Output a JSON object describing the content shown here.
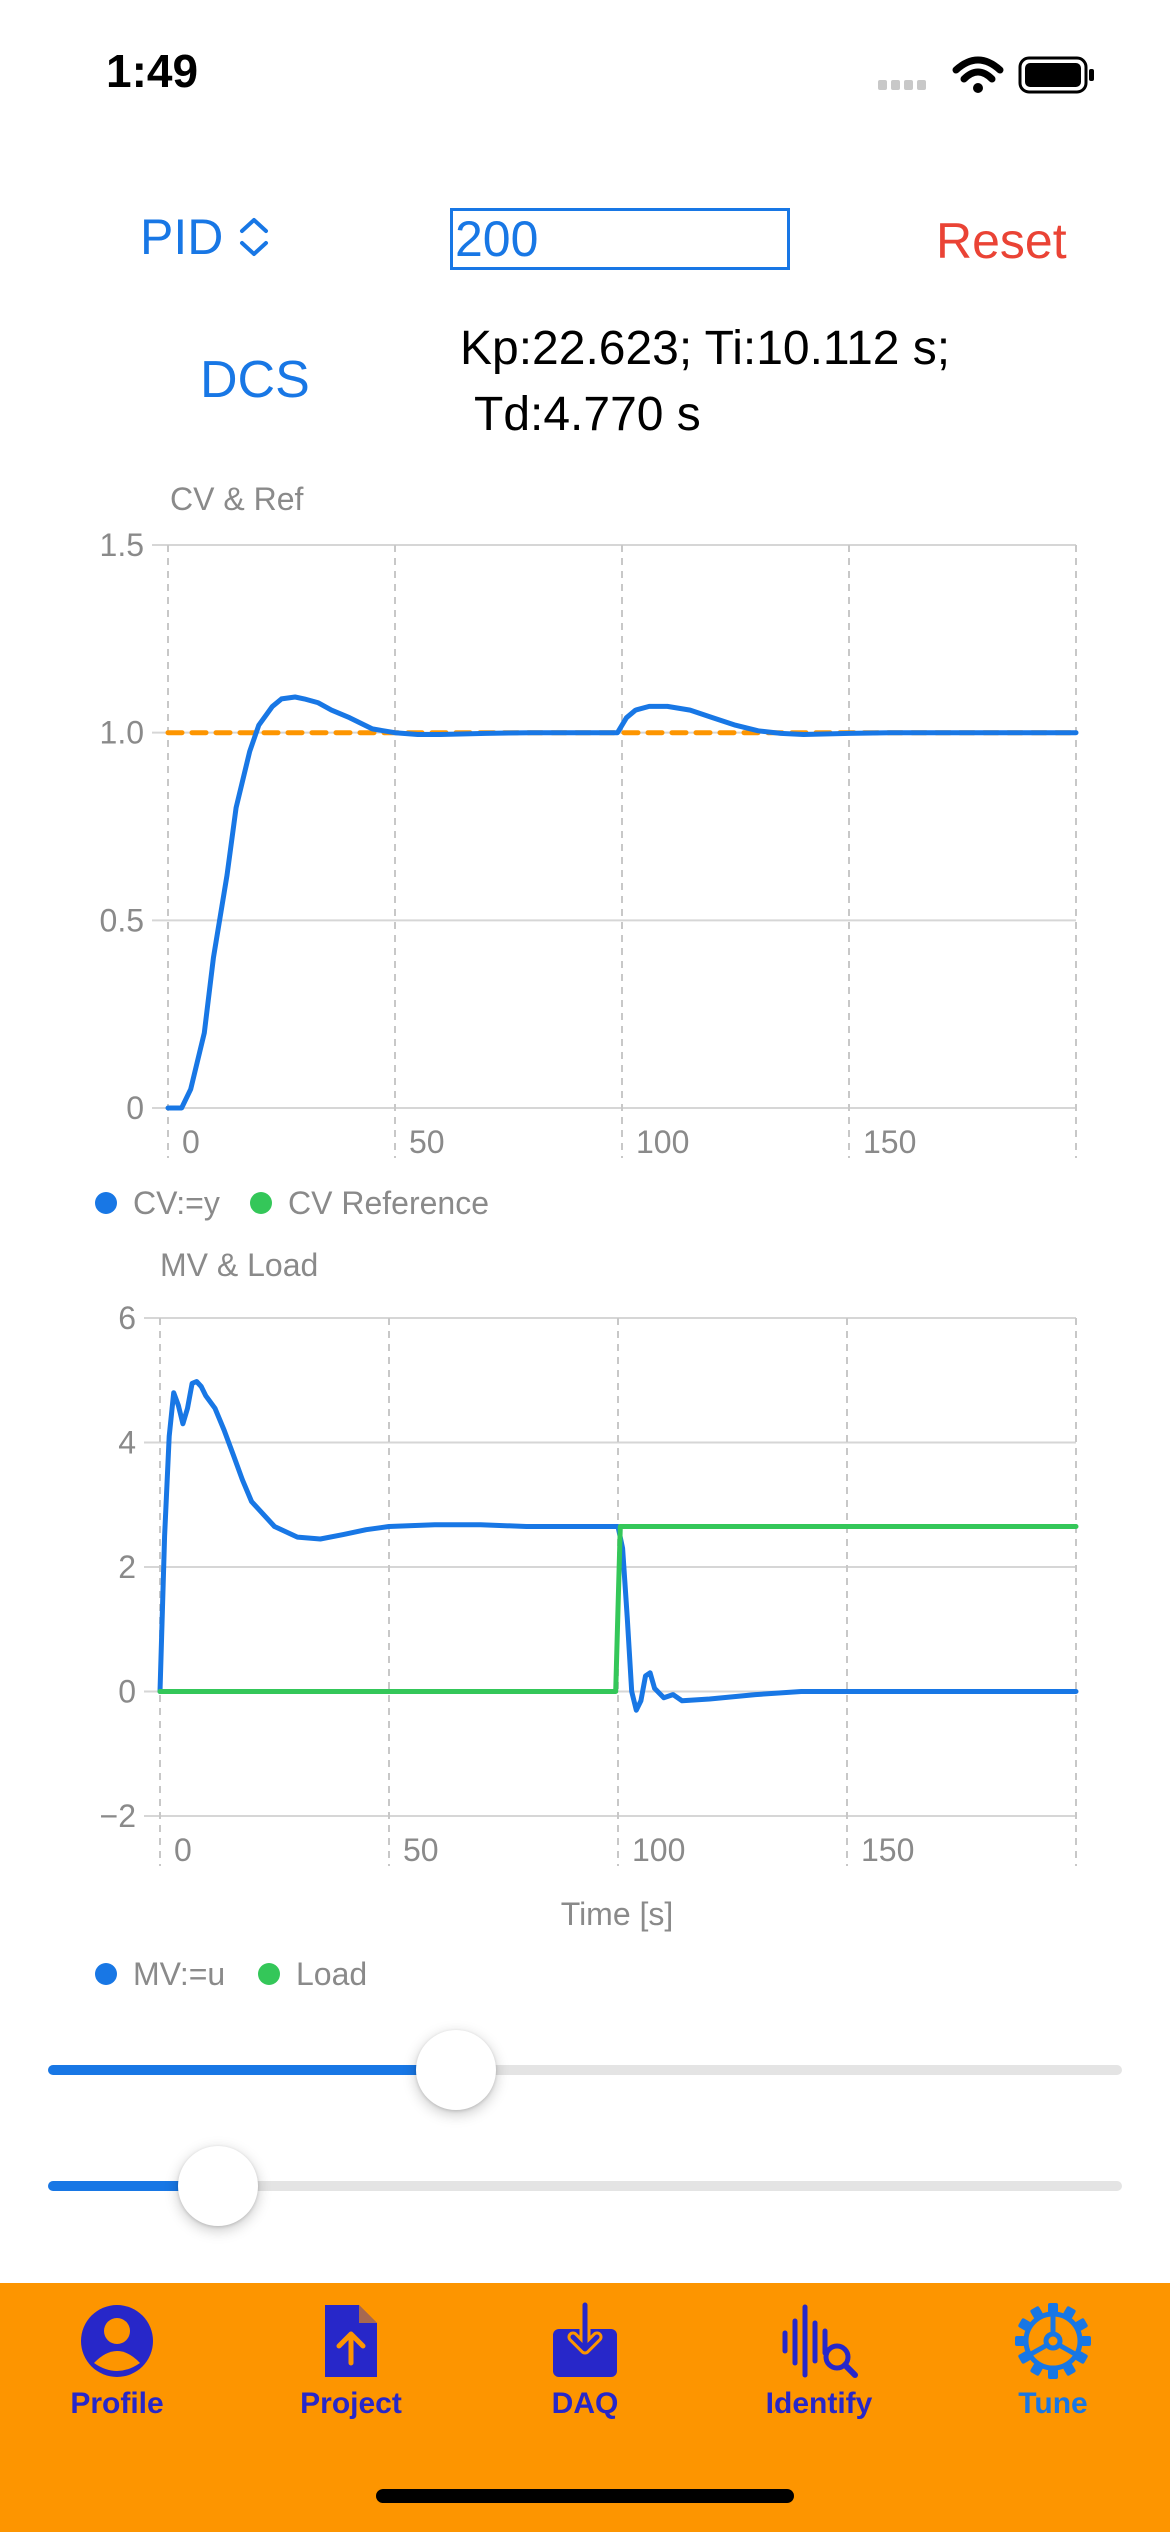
{
  "status_bar": {
    "time": "1:49"
  },
  "controls": {
    "controller_type": "PID",
    "duration_value": "200",
    "reset_label": "Reset",
    "dcs_label": "DCS",
    "params_line1": "Kp:22.623; Ti:10.112 s;",
    "params_line2": "Td:4.770 s"
  },
  "colors": {
    "accent": "#1877e5",
    "reset": "#ea4335",
    "cv_line": "#1877e5",
    "reference_line": "#fd9500",
    "load_line": "#34c759",
    "tab_bar": "#fd9500",
    "tab_label": "#2727c9"
  },
  "chart_data": [
    {
      "type": "line",
      "title": "CV & Ref",
      "xlim": [
        0,
        200
      ],
      "ylim": [
        0,
        1.5
      ],
      "xticks": [
        "0",
        "50",
        "100",
        "150"
      ],
      "yticks": [
        "0",
        "0.5",
        "1.0",
        "1.5"
      ],
      "grid": true,
      "legend_position": "bottom-left",
      "legend": [
        "CV:=y",
        "CV Reference"
      ],
      "series": [
        {
          "name": "CV:=y",
          "x": [
            0,
            3,
            5,
            8,
            10,
            13,
            15,
            18,
            20,
            23,
            25,
            28,
            30,
            33,
            36,
            40,
            45,
            50,
            55,
            60,
            70,
            80,
            90,
            99,
            101,
            103,
            106,
            110,
            115,
            120,
            125,
            130,
            135,
            140,
            150,
            160,
            170,
            180,
            190,
            200
          ],
          "y": [
            0,
            0.0,
            0.05,
            0.2,
            0.4,
            0.62,
            0.8,
            0.95,
            1.02,
            1.07,
            1.09,
            1.095,
            1.09,
            1.08,
            1.06,
            1.04,
            1.01,
            1.0,
            0.995,
            0.995,
            0.998,
            1.0,
            1.0,
            1.0,
            1.04,
            1.06,
            1.07,
            1.07,
            1.06,
            1.04,
            1.02,
            1.005,
            0.998,
            0.995,
            0.998,
            1.0,
            1.0,
            1.0,
            1.0,
            1.0
          ]
        },
        {
          "name": "CV Reference",
          "x": [
            0,
            200
          ],
          "y": [
            1.0,
            1.0
          ]
        }
      ]
    },
    {
      "type": "line",
      "title": "MV & Load",
      "xlabel": "Time [s]",
      "xlim": [
        0,
        200
      ],
      "ylim": [
        -2,
        6
      ],
      "xticks": [
        "0",
        "50",
        "100",
        "150"
      ],
      "yticks": [
        "−2",
        "0",
        "2",
        "4",
        "6"
      ],
      "grid": true,
      "legend_position": "bottom-left",
      "legend": [
        "MV:=u",
        "Load"
      ],
      "series": [
        {
          "name": "MV:=u",
          "x": [
            0,
            1,
            2,
            3,
            4,
            5,
            6,
            7,
            8,
            9,
            10,
            12,
            14,
            16,
            18,
            20,
            25,
            30,
            35,
            40,
            45,
            50,
            60,
            70,
            80,
            90,
            100,
            101,
            102,
            103,
            104,
            105,
            106,
            107,
            108,
            110,
            112,
            114,
            120,
            130,
            140,
            150,
            160,
            170,
            180,
            190,
            200
          ],
          "y": [
            0,
            2.5,
            4.1,
            4.8,
            4.6,
            4.3,
            4.55,
            4.95,
            4.98,
            4.9,
            4.75,
            4.55,
            4.2,
            3.8,
            3.4,
            3.05,
            2.65,
            2.48,
            2.45,
            2.52,
            2.6,
            2.65,
            2.68,
            2.68,
            2.65,
            2.65,
            2.65,
            2.3,
            1.2,
            0.0,
            -0.3,
            -0.15,
            0.25,
            0.3,
            0.05,
            -0.1,
            -0.05,
            -0.15,
            -0.12,
            -0.05,
            0.0,
            0.0,
            0.0,
            0.0,
            0.0,
            0.0,
            0.0
          ]
        },
        {
          "name": "Load",
          "x": [
            0,
            99.5,
            100.5,
            200
          ],
          "y": [
            0,
            0,
            2.65,
            2.65
          ]
        }
      ]
    }
  ],
  "sliders": [
    {
      "name": "slider-1",
      "value": 0.38
    },
    {
      "name": "slider-2",
      "value": 0.158
    }
  ],
  "tabs": [
    {
      "label": "Profile",
      "icon": "person-circle-icon",
      "active": false
    },
    {
      "label": "Project",
      "icon": "document-upload-icon",
      "active": false
    },
    {
      "label": "DAQ",
      "icon": "tray-download-icon",
      "active": false
    },
    {
      "label": "Identify",
      "icon": "waveform-magnify-icon",
      "active": false
    },
    {
      "label": "Tune",
      "icon": "gear-icon",
      "active": true
    }
  ]
}
